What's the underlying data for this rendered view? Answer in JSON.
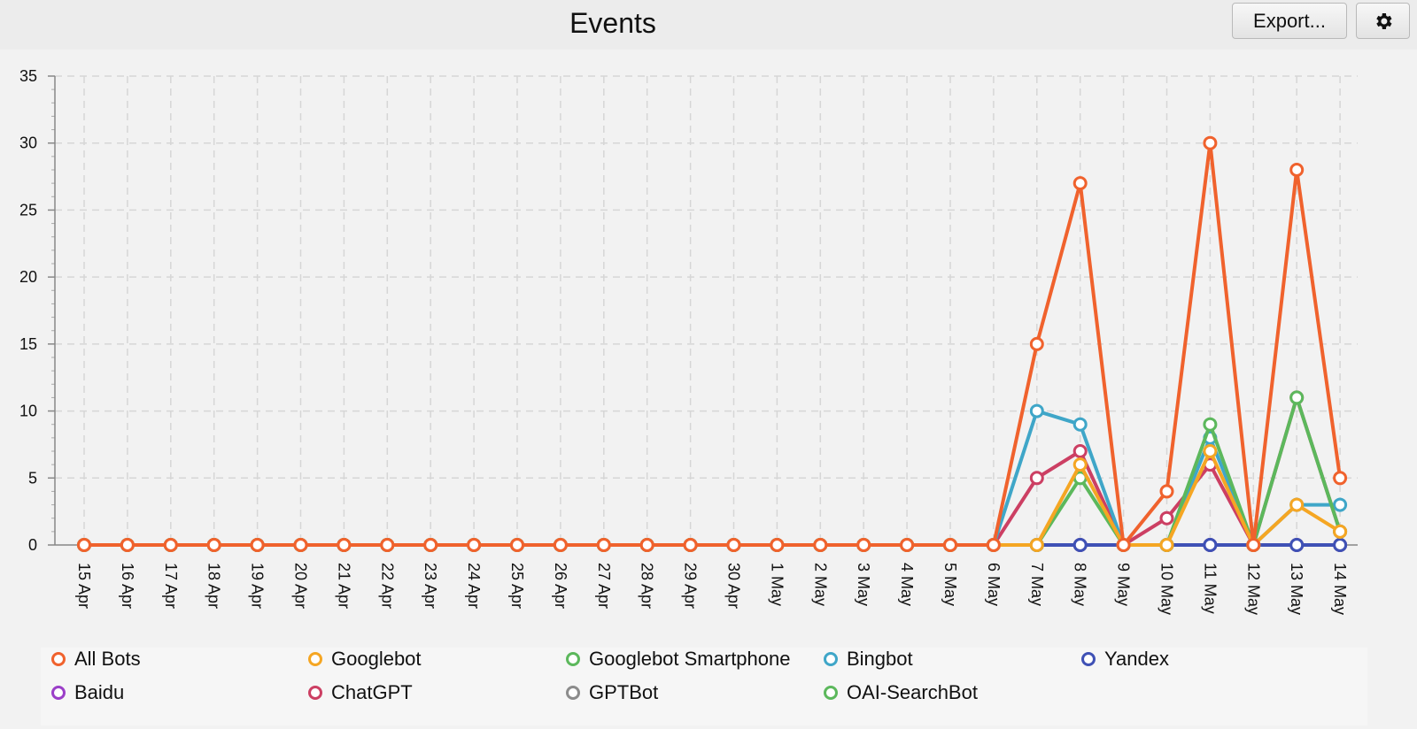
{
  "header": {
    "title": "Events",
    "export_label": "Export...",
    "settings_icon": "gear-icon"
  },
  "chart_data": {
    "type": "line",
    "title": "",
    "xlabel": "",
    "ylabel": "",
    "ylim": [
      0,
      35
    ],
    "yticks": [
      0,
      5,
      10,
      15,
      20,
      25,
      30,
      35
    ],
    "grid": true,
    "legend_position": "bottom",
    "categories": [
      "15 Apr",
      "16 Apr",
      "17 Apr",
      "18 Apr",
      "19 Apr",
      "20 Apr",
      "21 Apr",
      "22 Apr",
      "23 Apr",
      "24 Apr",
      "25 Apr",
      "26 Apr",
      "27 Apr",
      "28 Apr",
      "29 Apr",
      "30 Apr",
      "1 May",
      "2 May",
      "3 May",
      "4 May",
      "5 May",
      "6 May",
      "7 May",
      "8 May",
      "9 May",
      "10 May",
      "11 May",
      "12 May",
      "13 May",
      "14 May"
    ],
    "series": [
      {
        "name": "All Bots",
        "color": "#f0622d",
        "values": [
          0,
          0,
          0,
          0,
          0,
          0,
          0,
          0,
          0,
          0,
          0,
          0,
          0,
          0,
          0,
          0,
          0,
          0,
          0,
          0,
          0,
          0,
          15,
          27,
          0,
          4,
          30,
          0,
          28,
          5
        ]
      },
      {
        "name": "Googlebot",
        "color": "#f5a623",
        "values": [
          0,
          0,
          0,
          0,
          0,
          0,
          0,
          0,
          0,
          0,
          0,
          0,
          0,
          0,
          0,
          0,
          0,
          0,
          0,
          0,
          0,
          0,
          0,
          6,
          0,
          0,
          7,
          0,
          3,
          1
        ]
      },
      {
        "name": "Googlebot Smartphone",
        "color": "#5cb85c",
        "values": [
          0,
          0,
          0,
          0,
          0,
          0,
          0,
          0,
          0,
          0,
          0,
          0,
          0,
          0,
          0,
          0,
          0,
          0,
          0,
          0,
          0,
          0,
          0,
          5,
          0,
          0,
          9,
          0,
          11,
          1
        ]
      },
      {
        "name": "Bingbot",
        "color": "#3fa6c8",
        "values": [
          0,
          0,
          0,
          0,
          0,
          0,
          0,
          0,
          0,
          0,
          0,
          0,
          0,
          0,
          0,
          0,
          0,
          0,
          0,
          0,
          0,
          0,
          10,
          9,
          0,
          0,
          8,
          0,
          3,
          3
        ]
      },
      {
        "name": "Yandex",
        "color": "#3f51b5",
        "values": [
          0,
          0,
          0,
          0,
          0,
          0,
          0,
          0,
          0,
          0,
          0,
          0,
          0,
          0,
          0,
          0,
          0,
          0,
          0,
          0,
          0,
          0,
          0,
          0,
          0,
          0,
          0,
          0,
          0,
          0
        ]
      },
      {
        "name": "Baidu",
        "color": "#9b3fc8",
        "values": [
          0,
          0,
          0,
          0,
          0,
          0,
          0,
          0,
          0,
          0,
          0,
          0,
          0,
          0,
          0,
          0,
          0,
          0,
          0,
          0,
          0,
          0,
          0,
          0,
          0,
          0,
          0,
          0,
          0,
          0
        ]
      },
      {
        "name": "ChatGPT",
        "color": "#cc3f63",
        "values": [
          0,
          0,
          0,
          0,
          0,
          0,
          0,
          0,
          0,
          0,
          0,
          0,
          0,
          0,
          0,
          0,
          0,
          0,
          0,
          0,
          0,
          0,
          5,
          7,
          0,
          2,
          6,
          0,
          11,
          1
        ]
      },
      {
        "name": "GPTBot",
        "color": "#8c8c8c",
        "values": [
          0,
          0,
          0,
          0,
          0,
          0,
          0,
          0,
          0,
          0,
          0,
          0,
          0,
          0,
          0,
          0,
          0,
          0,
          0,
          0,
          0,
          0,
          0,
          0,
          0,
          0,
          0,
          0,
          0,
          0
        ]
      },
      {
        "name": "OAI-SearchBot",
        "color": "#5cb85c",
        "values": [
          0,
          0,
          0,
          0,
          0,
          0,
          0,
          0,
          0,
          0,
          0,
          0,
          0,
          0,
          0,
          0,
          0,
          0,
          0,
          0,
          0,
          0,
          0,
          0,
          0,
          0,
          0,
          0,
          0,
          0
        ]
      }
    ]
  }
}
